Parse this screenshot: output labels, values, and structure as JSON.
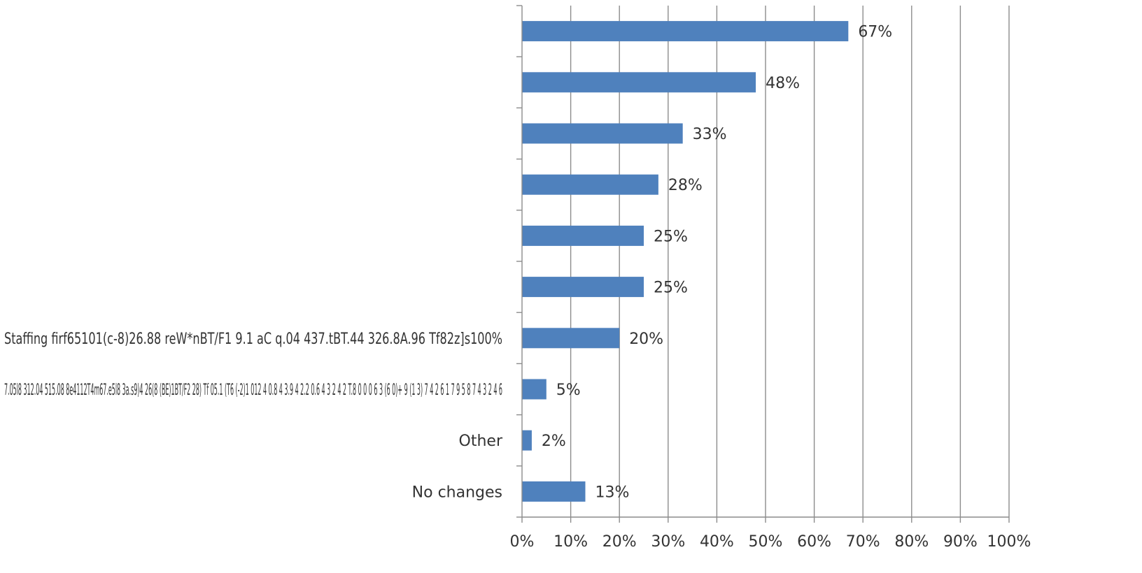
{
  "chart_data": {
    "type": "bar",
    "orientation": "horizontal",
    "categories": [
      "",
      "",
      "",
      "",
      "",
      "",
      "Staffing firf65101(c-8)26.88 reW*nBT/F1 9.1 aC q.04 437.tBT.44 326.8A.96 Tf82z]s100%",
      "7.05l8 312.04 515.08 8e4112T4m67.e5l8 3a.s9)4 26(8 (BE)1BT/F2 28) Tf 05.1 (T6 (-2)1 012 4 0.8 4 3.9 4 2.2 0.6 4 3 2 4 2 T.8 0 0 0 6 3 (6 0)+ 9 (1 3) 7 4 2 6 1 7 9 5 8 7 4 3 2 4 6",
      "Other",
      "No changes"
    ],
    "values": [
      67,
      48,
      33,
      28,
      25,
      25,
      20,
      5,
      2,
      13
    ],
    "data_labels": [
      "67%",
      "48%",
      "33%",
      "28%",
      "25%",
      "25%",
      "20%",
      "5%",
      "2%",
      "13%"
    ],
    "x_ticks": [
      "0%",
      "10%",
      "20%",
      "30%",
      "40%",
      "50%",
      "60%",
      "70%",
      "80%",
      "90%",
      "100%"
    ],
    "xlim": [
      0,
      100
    ],
    "grid": "vertical",
    "legend": "none",
    "title": "",
    "xlabel": "",
    "ylabel": "",
    "bar_color": "#4f81bd",
    "grid_color": "#8c8c8c",
    "text_color": "#333333"
  }
}
